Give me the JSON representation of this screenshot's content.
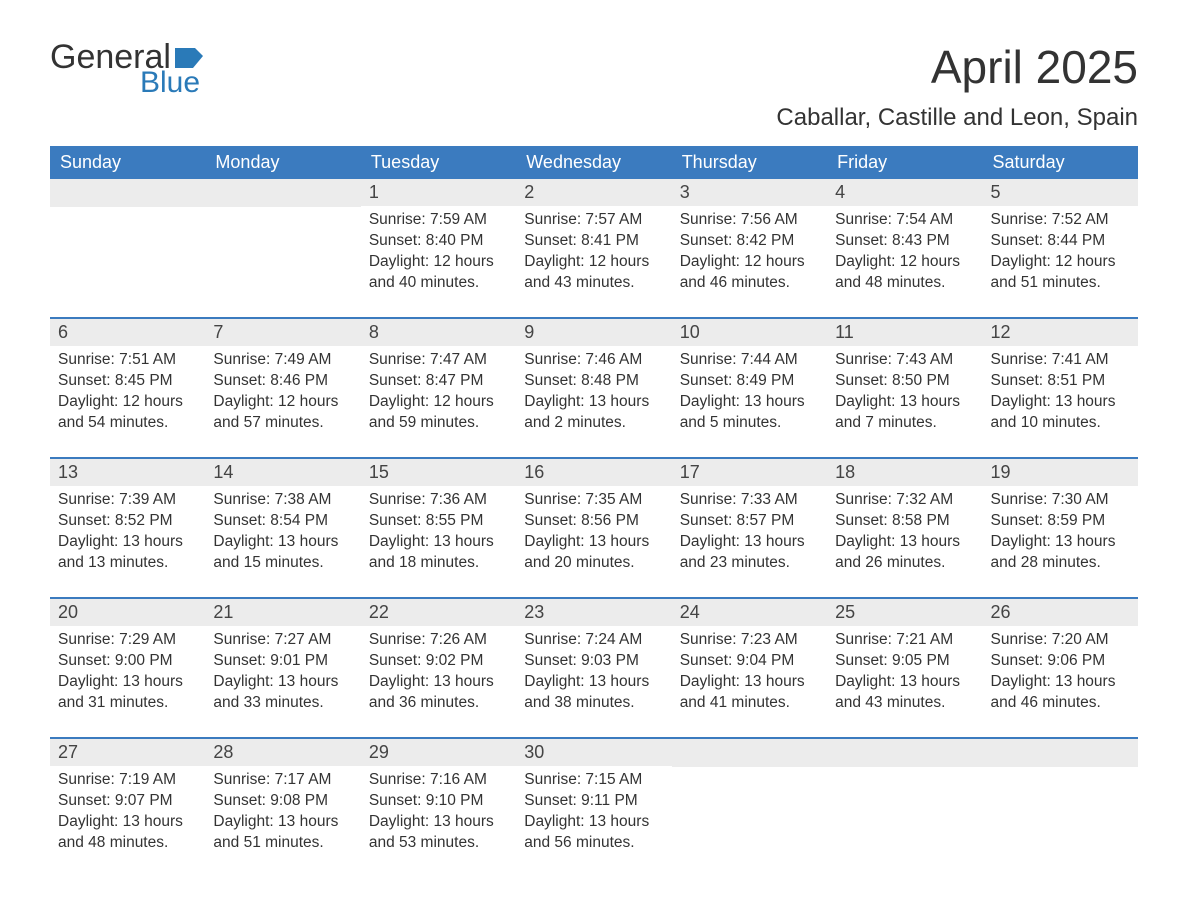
{
  "logo": {
    "general": "General",
    "blue": "Blue"
  },
  "title": "April 2025",
  "subtitle": "Caballar, Castille and Leon, Spain",
  "colors": {
    "header_bg": "#3b7bbf",
    "header_text": "#ffffff",
    "daynum_bg": "#ececec",
    "text": "#333333",
    "logo_blue": "#2a7ab8",
    "week_border": "#3b7bbf"
  },
  "day_headers": [
    "Sunday",
    "Monday",
    "Tuesday",
    "Wednesday",
    "Thursday",
    "Friday",
    "Saturday"
  ],
  "weeks": [
    [
      {
        "n": "",
        "sunrise": "",
        "sunset": "",
        "daylight1": "",
        "daylight2": ""
      },
      {
        "n": "",
        "sunrise": "",
        "sunset": "",
        "daylight1": "",
        "daylight2": ""
      },
      {
        "n": "1",
        "sunrise": "Sunrise: 7:59 AM",
        "sunset": "Sunset: 8:40 PM",
        "daylight1": "Daylight: 12 hours",
        "daylight2": "and 40 minutes."
      },
      {
        "n": "2",
        "sunrise": "Sunrise: 7:57 AM",
        "sunset": "Sunset: 8:41 PM",
        "daylight1": "Daylight: 12 hours",
        "daylight2": "and 43 minutes."
      },
      {
        "n": "3",
        "sunrise": "Sunrise: 7:56 AM",
        "sunset": "Sunset: 8:42 PM",
        "daylight1": "Daylight: 12 hours",
        "daylight2": "and 46 minutes."
      },
      {
        "n": "4",
        "sunrise": "Sunrise: 7:54 AM",
        "sunset": "Sunset: 8:43 PM",
        "daylight1": "Daylight: 12 hours",
        "daylight2": "and 48 minutes."
      },
      {
        "n": "5",
        "sunrise": "Sunrise: 7:52 AM",
        "sunset": "Sunset: 8:44 PM",
        "daylight1": "Daylight: 12 hours",
        "daylight2": "and 51 minutes."
      }
    ],
    [
      {
        "n": "6",
        "sunrise": "Sunrise: 7:51 AM",
        "sunset": "Sunset: 8:45 PM",
        "daylight1": "Daylight: 12 hours",
        "daylight2": "and 54 minutes."
      },
      {
        "n": "7",
        "sunrise": "Sunrise: 7:49 AM",
        "sunset": "Sunset: 8:46 PM",
        "daylight1": "Daylight: 12 hours",
        "daylight2": "and 57 minutes."
      },
      {
        "n": "8",
        "sunrise": "Sunrise: 7:47 AM",
        "sunset": "Sunset: 8:47 PM",
        "daylight1": "Daylight: 12 hours",
        "daylight2": "and 59 minutes."
      },
      {
        "n": "9",
        "sunrise": "Sunrise: 7:46 AM",
        "sunset": "Sunset: 8:48 PM",
        "daylight1": "Daylight: 13 hours",
        "daylight2": "and 2 minutes."
      },
      {
        "n": "10",
        "sunrise": "Sunrise: 7:44 AM",
        "sunset": "Sunset: 8:49 PM",
        "daylight1": "Daylight: 13 hours",
        "daylight2": "and 5 minutes."
      },
      {
        "n": "11",
        "sunrise": "Sunrise: 7:43 AM",
        "sunset": "Sunset: 8:50 PM",
        "daylight1": "Daylight: 13 hours",
        "daylight2": "and 7 minutes."
      },
      {
        "n": "12",
        "sunrise": "Sunrise: 7:41 AM",
        "sunset": "Sunset: 8:51 PM",
        "daylight1": "Daylight: 13 hours",
        "daylight2": "and 10 minutes."
      }
    ],
    [
      {
        "n": "13",
        "sunrise": "Sunrise: 7:39 AM",
        "sunset": "Sunset: 8:52 PM",
        "daylight1": "Daylight: 13 hours",
        "daylight2": "and 13 minutes."
      },
      {
        "n": "14",
        "sunrise": "Sunrise: 7:38 AM",
        "sunset": "Sunset: 8:54 PM",
        "daylight1": "Daylight: 13 hours",
        "daylight2": "and 15 minutes."
      },
      {
        "n": "15",
        "sunrise": "Sunrise: 7:36 AM",
        "sunset": "Sunset: 8:55 PM",
        "daylight1": "Daylight: 13 hours",
        "daylight2": "and 18 minutes."
      },
      {
        "n": "16",
        "sunrise": "Sunrise: 7:35 AM",
        "sunset": "Sunset: 8:56 PM",
        "daylight1": "Daylight: 13 hours",
        "daylight2": "and 20 minutes."
      },
      {
        "n": "17",
        "sunrise": "Sunrise: 7:33 AM",
        "sunset": "Sunset: 8:57 PM",
        "daylight1": "Daylight: 13 hours",
        "daylight2": "and 23 minutes."
      },
      {
        "n": "18",
        "sunrise": "Sunrise: 7:32 AM",
        "sunset": "Sunset: 8:58 PM",
        "daylight1": "Daylight: 13 hours",
        "daylight2": "and 26 minutes."
      },
      {
        "n": "19",
        "sunrise": "Sunrise: 7:30 AM",
        "sunset": "Sunset: 8:59 PM",
        "daylight1": "Daylight: 13 hours",
        "daylight2": "and 28 minutes."
      }
    ],
    [
      {
        "n": "20",
        "sunrise": "Sunrise: 7:29 AM",
        "sunset": "Sunset: 9:00 PM",
        "daylight1": "Daylight: 13 hours",
        "daylight2": "and 31 minutes."
      },
      {
        "n": "21",
        "sunrise": "Sunrise: 7:27 AM",
        "sunset": "Sunset: 9:01 PM",
        "daylight1": "Daylight: 13 hours",
        "daylight2": "and 33 minutes."
      },
      {
        "n": "22",
        "sunrise": "Sunrise: 7:26 AM",
        "sunset": "Sunset: 9:02 PM",
        "daylight1": "Daylight: 13 hours",
        "daylight2": "and 36 minutes."
      },
      {
        "n": "23",
        "sunrise": "Sunrise: 7:24 AM",
        "sunset": "Sunset: 9:03 PM",
        "daylight1": "Daylight: 13 hours",
        "daylight2": "and 38 minutes."
      },
      {
        "n": "24",
        "sunrise": "Sunrise: 7:23 AM",
        "sunset": "Sunset: 9:04 PM",
        "daylight1": "Daylight: 13 hours",
        "daylight2": "and 41 minutes."
      },
      {
        "n": "25",
        "sunrise": "Sunrise: 7:21 AM",
        "sunset": "Sunset: 9:05 PM",
        "daylight1": "Daylight: 13 hours",
        "daylight2": "and 43 minutes."
      },
      {
        "n": "26",
        "sunrise": "Sunrise: 7:20 AM",
        "sunset": "Sunset: 9:06 PM",
        "daylight1": "Daylight: 13 hours",
        "daylight2": "and 46 minutes."
      }
    ],
    [
      {
        "n": "27",
        "sunrise": "Sunrise: 7:19 AM",
        "sunset": "Sunset: 9:07 PM",
        "daylight1": "Daylight: 13 hours",
        "daylight2": "and 48 minutes."
      },
      {
        "n": "28",
        "sunrise": "Sunrise: 7:17 AM",
        "sunset": "Sunset: 9:08 PM",
        "daylight1": "Daylight: 13 hours",
        "daylight2": "and 51 minutes."
      },
      {
        "n": "29",
        "sunrise": "Sunrise: 7:16 AM",
        "sunset": "Sunset: 9:10 PM",
        "daylight1": "Daylight: 13 hours",
        "daylight2": "and 53 minutes."
      },
      {
        "n": "30",
        "sunrise": "Sunrise: 7:15 AM",
        "sunset": "Sunset: 9:11 PM",
        "daylight1": "Daylight: 13 hours",
        "daylight2": "and 56 minutes."
      },
      {
        "n": "",
        "sunrise": "",
        "sunset": "",
        "daylight1": "",
        "daylight2": ""
      },
      {
        "n": "",
        "sunrise": "",
        "sunset": "",
        "daylight1": "",
        "daylight2": ""
      },
      {
        "n": "",
        "sunrise": "",
        "sunset": "",
        "daylight1": "",
        "daylight2": ""
      }
    ]
  ]
}
